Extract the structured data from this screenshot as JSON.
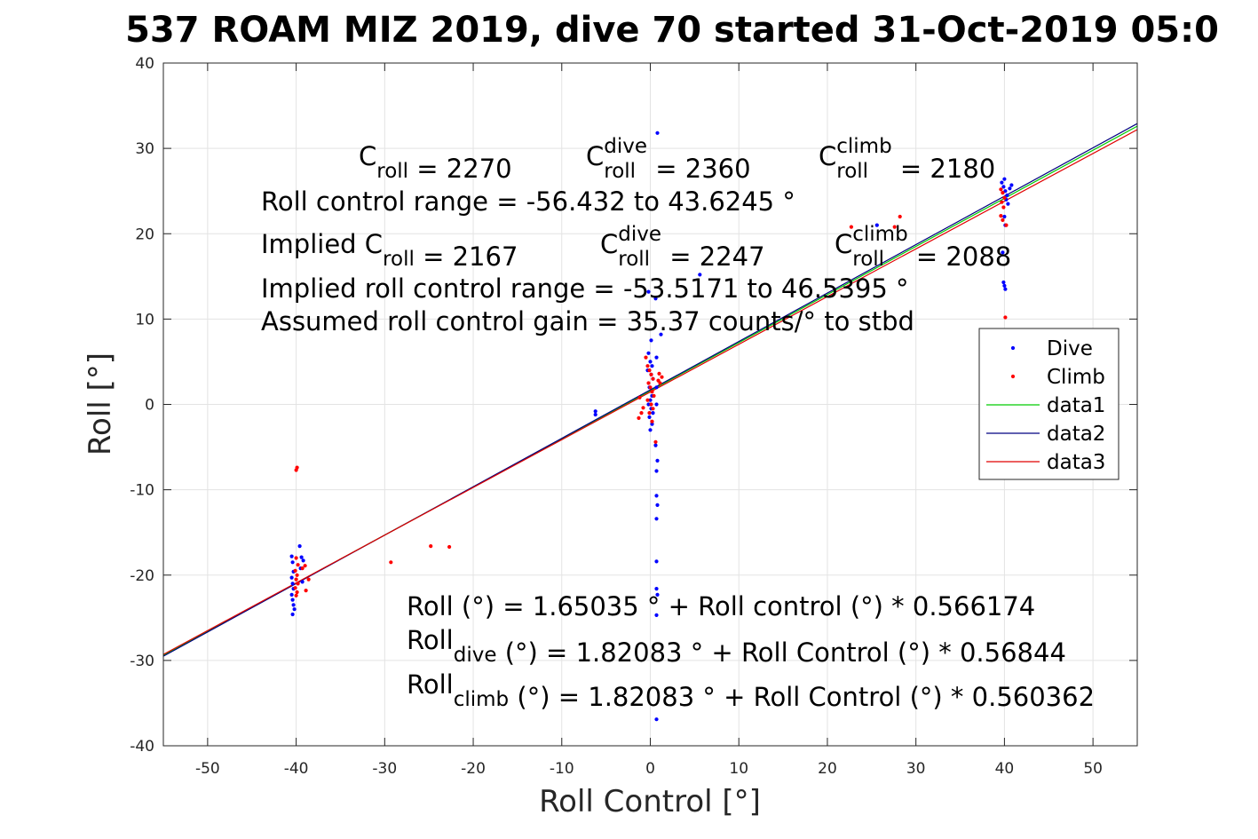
{
  "title": "537 ROAM MIZ 2019, dive 70 started 31-Oct-2019 05:0",
  "chart_data": {
    "type": "scatter",
    "xlabel": "Roll Control [°]",
    "ylabel": "Roll [°]",
    "xlim": [
      -55,
      55
    ],
    "ylim": [
      -40,
      40
    ],
    "xticks": [
      -50,
      -40,
      -30,
      -20,
      -10,
      0,
      10,
      20,
      30,
      40,
      50
    ],
    "yticks": [
      -40,
      -30,
      -20,
      -10,
      0,
      10,
      20,
      30,
      40
    ],
    "grid": true,
    "legend_position": "right",
    "colors": {
      "dive": "#0000ff",
      "climb": "#ff0000",
      "data1": "#00cc00",
      "data2": "#000080",
      "data3": "#e00000"
    },
    "series": [
      {
        "name": "Dive",
        "kind": "points",
        "points": [
          [
            -40.5,
            -17.8
          ],
          [
            -40.4,
            -18.5
          ],
          [
            -40.3,
            -19.6
          ],
          [
            -40.5,
            -20.3
          ],
          [
            -40.4,
            -21.0
          ],
          [
            -40.3,
            -21.6
          ],
          [
            -40.5,
            -22.3
          ],
          [
            -40.4,
            -22.9
          ],
          [
            -40.3,
            -23.5
          ],
          [
            -40.2,
            -24.0
          ],
          [
            -40.4,
            -24.6
          ],
          [
            -39.6,
            -16.6
          ],
          [
            -39.4,
            -17.9
          ],
          [
            -39.5,
            -19.2
          ],
          [
            -39.3,
            -20.8
          ],
          [
            -39.2,
            -18.3
          ],
          [
            -6.2,
            -0.8
          ],
          [
            -6.2,
            -1.2
          ],
          [
            -0.2,
            13.2
          ],
          [
            0.1,
            7.5
          ],
          [
            -0.2,
            6.0
          ],
          [
            0.0,
            5.0
          ],
          [
            0.2,
            4.5
          ],
          [
            -0.3,
            4.0
          ],
          [
            0.1,
            3.5
          ],
          [
            0.3,
            3.0
          ],
          [
            -0.1,
            2.0
          ],
          [
            0.2,
            1.0
          ],
          [
            0.0,
            0.5
          ],
          [
            -0.2,
            0.0
          ],
          [
            0.1,
            -0.5
          ],
          [
            0.3,
            -1.0
          ],
          [
            -0.1,
            -1.5
          ],
          [
            0.2,
            -2.3
          ],
          [
            0.0,
            -3.0
          ],
          [
            0.8,
            31.8
          ],
          [
            0.6,
            12.4
          ],
          [
            0.7,
            5.5
          ],
          [
            0.7,
            2.0
          ],
          [
            0.7,
            0.0
          ],
          [
            0.6,
            -4.8
          ],
          [
            0.8,
            -6.6
          ],
          [
            0.7,
            -7.8
          ],
          [
            0.7,
            -10.7
          ],
          [
            0.8,
            -11.8
          ],
          [
            0.7,
            -13.4
          ],
          [
            0.7,
            -18.4
          ],
          [
            0.7,
            -21.6
          ],
          [
            0.8,
            -22.3
          ],
          [
            0.7,
            -24.7
          ],
          [
            0.7,
            -36.9
          ],
          [
            1.2,
            8.2
          ],
          [
            5.6,
            15.2
          ],
          [
            25.6,
            21.0
          ],
          [
            39.7,
            26.0
          ],
          [
            39.9,
            25.5
          ],
          [
            40.1,
            25.0
          ],
          [
            40.3,
            24.5
          ],
          [
            40.2,
            24.0
          ],
          [
            40.4,
            23.5
          ],
          [
            40.0,
            26.4
          ],
          [
            40.6,
            25.3
          ],
          [
            40.8,
            25.7
          ],
          [
            40.0,
            22.0
          ],
          [
            40.1,
            21.0
          ],
          [
            39.8,
            17.8
          ],
          [
            39.9,
            14.3
          ],
          [
            40.0,
            13.9
          ],
          [
            40.1,
            13.5
          ]
        ]
      },
      {
        "name": "Climb",
        "kind": "points",
        "points": [
          [
            -39.9,
            -7.4
          ],
          [
            -40.0,
            -7.7
          ],
          [
            -40.0,
            -18.0
          ],
          [
            -39.8,
            -18.8
          ],
          [
            -40.1,
            -19.5
          ],
          [
            -39.9,
            -20.0
          ],
          [
            -40.0,
            -20.5
          ],
          [
            -39.8,
            -21.0
          ],
          [
            -40.1,
            -21.5
          ],
          [
            -39.9,
            -22.0
          ],
          [
            -40.0,
            -22.4
          ],
          [
            -39.3,
            -19.2
          ],
          [
            -39.0,
            -18.9
          ],
          [
            -38.9,
            -21.8
          ],
          [
            -38.6,
            -20.5
          ],
          [
            -29.3,
            -18.5
          ],
          [
            -24.8,
            -16.6
          ],
          [
            -22.7,
            -16.7
          ],
          [
            -1.2,
            0.8
          ],
          [
            -1.0,
            -1.0
          ],
          [
            -1.3,
            -1.6
          ],
          [
            -0.8,
            -0.4
          ],
          [
            -0.5,
            5.5
          ],
          [
            -0.3,
            4.5
          ],
          [
            -0.1,
            4.0
          ],
          [
            0.1,
            3.5
          ],
          [
            0.3,
            3.0
          ],
          [
            -0.2,
            2.5
          ],
          [
            0.0,
            2.0
          ],
          [
            0.2,
            1.5
          ],
          [
            0.4,
            1.0
          ],
          [
            -0.3,
            0.5
          ],
          [
            0.1,
            0.0
          ],
          [
            0.3,
            -0.5
          ],
          [
            -0.1,
            -1.0
          ],
          [
            0.2,
            -2.0
          ],
          [
            0.6,
            -4.4
          ],
          [
            1.0,
            3.6
          ],
          [
            1.1,
            2.5
          ],
          [
            0.9,
            2.8
          ],
          [
            1.3,
            3.2
          ],
          [
            22.7,
            20.8
          ],
          [
            27.6,
            20.8
          ],
          [
            28.2,
            22.0
          ],
          [
            39.6,
            25.2
          ],
          [
            39.8,
            24.8
          ],
          [
            40.0,
            24.2
          ],
          [
            39.7,
            23.7
          ],
          [
            39.9,
            23.1
          ],
          [
            39.6,
            22.1
          ],
          [
            39.8,
            21.6
          ],
          [
            40.2,
            21.0
          ],
          [
            40.1,
            10.2
          ]
        ]
      },
      {
        "name": "data1",
        "kind": "line",
        "x": [
          -55,
          55
        ],
        "y": [
          -29.4,
          32.6
        ]
      },
      {
        "name": "data2",
        "kind": "line",
        "x": [
          -55,
          55
        ],
        "y": [
          -29.5,
          32.9
        ]
      },
      {
        "name": "data3",
        "kind": "line",
        "x": [
          -55,
          55
        ],
        "y": [
          -29.3,
          32.2
        ]
      }
    ],
    "annotations": [
      {
        "id": "croll",
        "parts": [
          {
            "t": "C"
          },
          {
            "t": "roll",
            "sub": true
          },
          {
            "t": " = 2270"
          }
        ]
      },
      {
        "id": "croll-dive",
        "parts": [
          {
            "t": "C"
          },
          {
            "t": "roll",
            "sub": true,
            "sup": "dive"
          },
          {
            "t": " = 2360"
          }
        ]
      },
      {
        "id": "croll-climb",
        "parts": [
          {
            "t": "C"
          },
          {
            "t": "roll",
            "sub": true,
            "sup": "climb"
          },
          {
            "t": " = 2180"
          }
        ]
      },
      {
        "id": "range",
        "parts": [
          {
            "t": "Roll control range = -56.432 to 43.6245 °"
          }
        ]
      },
      {
        "id": "implied-croll",
        "parts": [
          {
            "t": "Implied C"
          },
          {
            "t": "roll",
            "sub": true
          },
          {
            "t": " = 2167"
          }
        ]
      },
      {
        "id": "implied-croll-dive",
        "parts": [
          {
            "t": "C"
          },
          {
            "t": "roll",
            "sub": true,
            "sup": "dive"
          },
          {
            "t": " = 2247"
          }
        ]
      },
      {
        "id": "implied-croll-climb",
        "parts": [
          {
            "t": "C"
          },
          {
            "t": "roll",
            "sub": true,
            "sup": "climb"
          },
          {
            "t": " = 2088"
          }
        ]
      },
      {
        "id": "implied-range",
        "parts": [
          {
            "t": "Implied roll control range = -53.5171 to 46.5395 °"
          }
        ]
      },
      {
        "id": "gain",
        "parts": [
          {
            "t": "Assumed roll control gain = 35.37 counts/° to stbd"
          }
        ]
      },
      {
        "id": "fit",
        "parts": [
          {
            "t": "Roll (°) = 1.65035 ° + Roll control (°) * 0.566174"
          }
        ]
      },
      {
        "id": "fit-dive",
        "parts": [
          {
            "t": "Roll"
          },
          {
            "t": "dive",
            "sub": true
          },
          {
            "t": " (°) = 1.82083 ° + Roll Control (°) * 0.56844"
          }
        ]
      },
      {
        "id": "fit-climb",
        "parts": [
          {
            "t": "Roll"
          },
          {
            "t": "climb",
            "sub": true
          },
          {
            "t": " (°) = 1.82083 ° + Roll Control (°) * 0.560362"
          }
        ]
      }
    ]
  }
}
